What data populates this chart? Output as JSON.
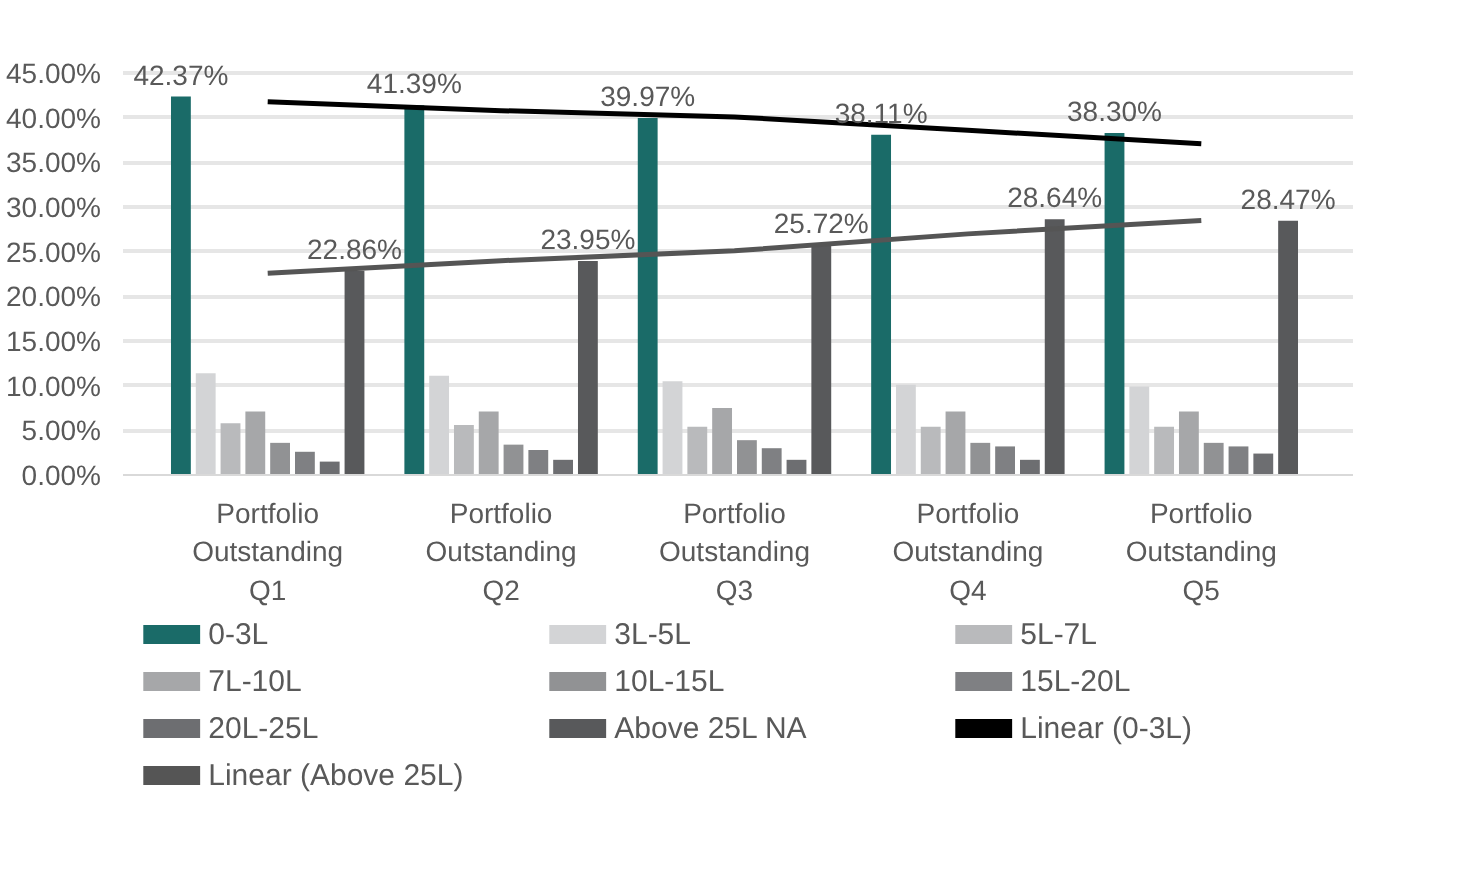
{
  "chart_data": {
    "type": "bar",
    "categories": [
      "Portfolio\nOutstanding\nQ1",
      "Portfolio\nOutstanding\nQ2",
      "Portfolio\nOutstanding\nQ3",
      "Portfolio\nOutstanding\nQ4",
      "Portfolio\nOutstanding\nQ5"
    ],
    "series": [
      {
        "name": "0-3L",
        "color": "#1a6b68",
        "values": [
          42.37,
          41.39,
          39.97,
          38.11,
          38.3
        ],
        "value_labels": [
          "42.37%",
          "41.39%",
          "39.97%",
          "38.11%",
          "38.30%"
        ]
      },
      {
        "name": "3L-5L",
        "color": "#d3d4d6",
        "values": [
          11.4,
          11.1,
          10.5,
          10.1,
          9.9
        ]
      },
      {
        "name": "5L-7L",
        "color": "#b9babc",
        "values": [
          5.8,
          5.6,
          5.4,
          5.4,
          5.4
        ]
      },
      {
        "name": "7L-10L",
        "color": "#a6a7a9",
        "values": [
          7.1,
          7.1,
          7.5,
          7.1,
          7.1
        ]
      },
      {
        "name": "10L-15L",
        "color": "#919294",
        "values": [
          3.6,
          3.4,
          3.9,
          3.6,
          3.6
        ]
      },
      {
        "name": "15L-20L",
        "color": "#7f8083",
        "values": [
          2.6,
          2.8,
          3.0,
          3.2,
          3.2
        ]
      },
      {
        "name": "20L-25L",
        "color": "#6d6e71",
        "values": [
          1.5,
          1.7,
          1.7,
          1.7,
          2.4
        ]
      },
      {
        "name": "Above 25L NA",
        "color": "#58595b",
        "values": [
          22.86,
          23.95,
          25.72,
          28.64,
          28.47
        ],
        "value_labels": [
          "22.86%",
          "23.95%",
          "25.72%",
          "28.64%",
          "28.47%"
        ]
      },
      {
        "name": "Linear (0-3L)",
        "type": "line",
        "color": "#000000",
        "values": [
          41.8,
          40.8,
          40.1,
          38.6,
          37.1
        ]
      },
      {
        "name": "Linear (Above 25L)",
        "type": "line",
        "color": "#555555",
        "values": [
          22.6,
          24.0,
          25.1,
          27.0,
          28.5
        ]
      }
    ],
    "ylim": [
      0,
      45
    ],
    "yticks": [
      {
        "value": 0,
        "label": "0.00%"
      },
      {
        "value": 5,
        "label": "5.00%"
      },
      {
        "value": 10,
        "label": "10.00%"
      },
      {
        "value": 15,
        "label": "15.00%"
      },
      {
        "value": 20,
        "label": "20.00%"
      },
      {
        "value": 25,
        "label": "25.00%"
      },
      {
        "value": 30,
        "label": "30.00%"
      },
      {
        "value": 35,
        "label": "35.00%"
      },
      {
        "value": 40,
        "label": "40.00%"
      },
      {
        "value": 45,
        "label": "45.00%"
      }
    ],
    "grid": "y",
    "legend": "bottom"
  }
}
